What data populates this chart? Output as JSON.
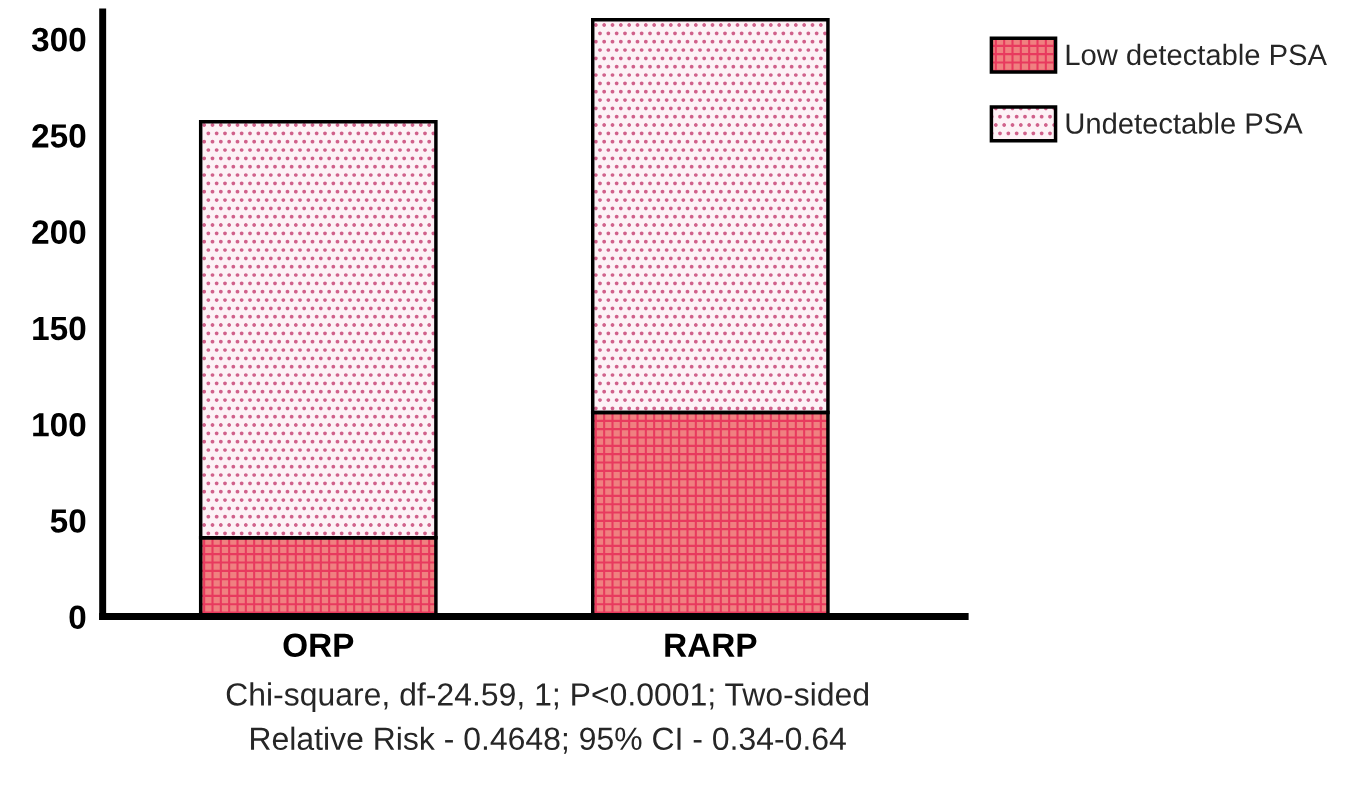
{
  "chart_data": {
    "type": "bar",
    "stacked": true,
    "categories": [
      "ORP",
      "RARP"
    ],
    "series": [
      {
        "name": "Low detectable PSA",
        "color": "#f08080",
        "values": [
          41,
          106
        ]
      },
      {
        "name": "Undetectable PSA",
        "color": "#fdf2f6",
        "values": [
          216,
          204
        ]
      }
    ],
    "ylim": [
      0,
      314
    ],
    "yticks": [
      0,
      50,
      100,
      150,
      200,
      250,
      300
    ],
    "grid": false,
    "legend": "top right",
    "annotations": [
      "Chi-square, df-24.59, 1; P<0.0001; Two-sided",
      "Relative Risk - 0.4648; 95% CI - 0.34-0.64"
    ]
  }
}
